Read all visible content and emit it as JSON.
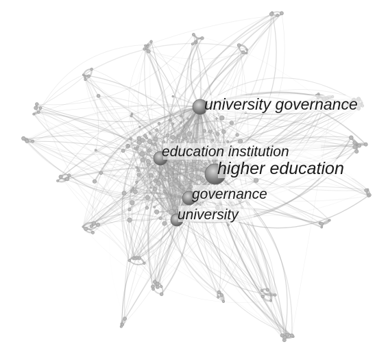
{
  "network": {
    "keywords": [
      {
        "id": "university-governance",
        "label": "university governance"
      },
      {
        "id": "education-institution",
        "label": "education institution"
      },
      {
        "id": "higher-education",
        "label": "higher education"
      },
      {
        "id": "governance",
        "label": "governance"
      },
      {
        "id": "university",
        "label": "university"
      }
    ],
    "colors": {
      "edge": "#9a9a9a",
      "node": "#b9b9b9",
      "hub": "#6a6a6a",
      "label": "#1a1a1a"
    }
  }
}
